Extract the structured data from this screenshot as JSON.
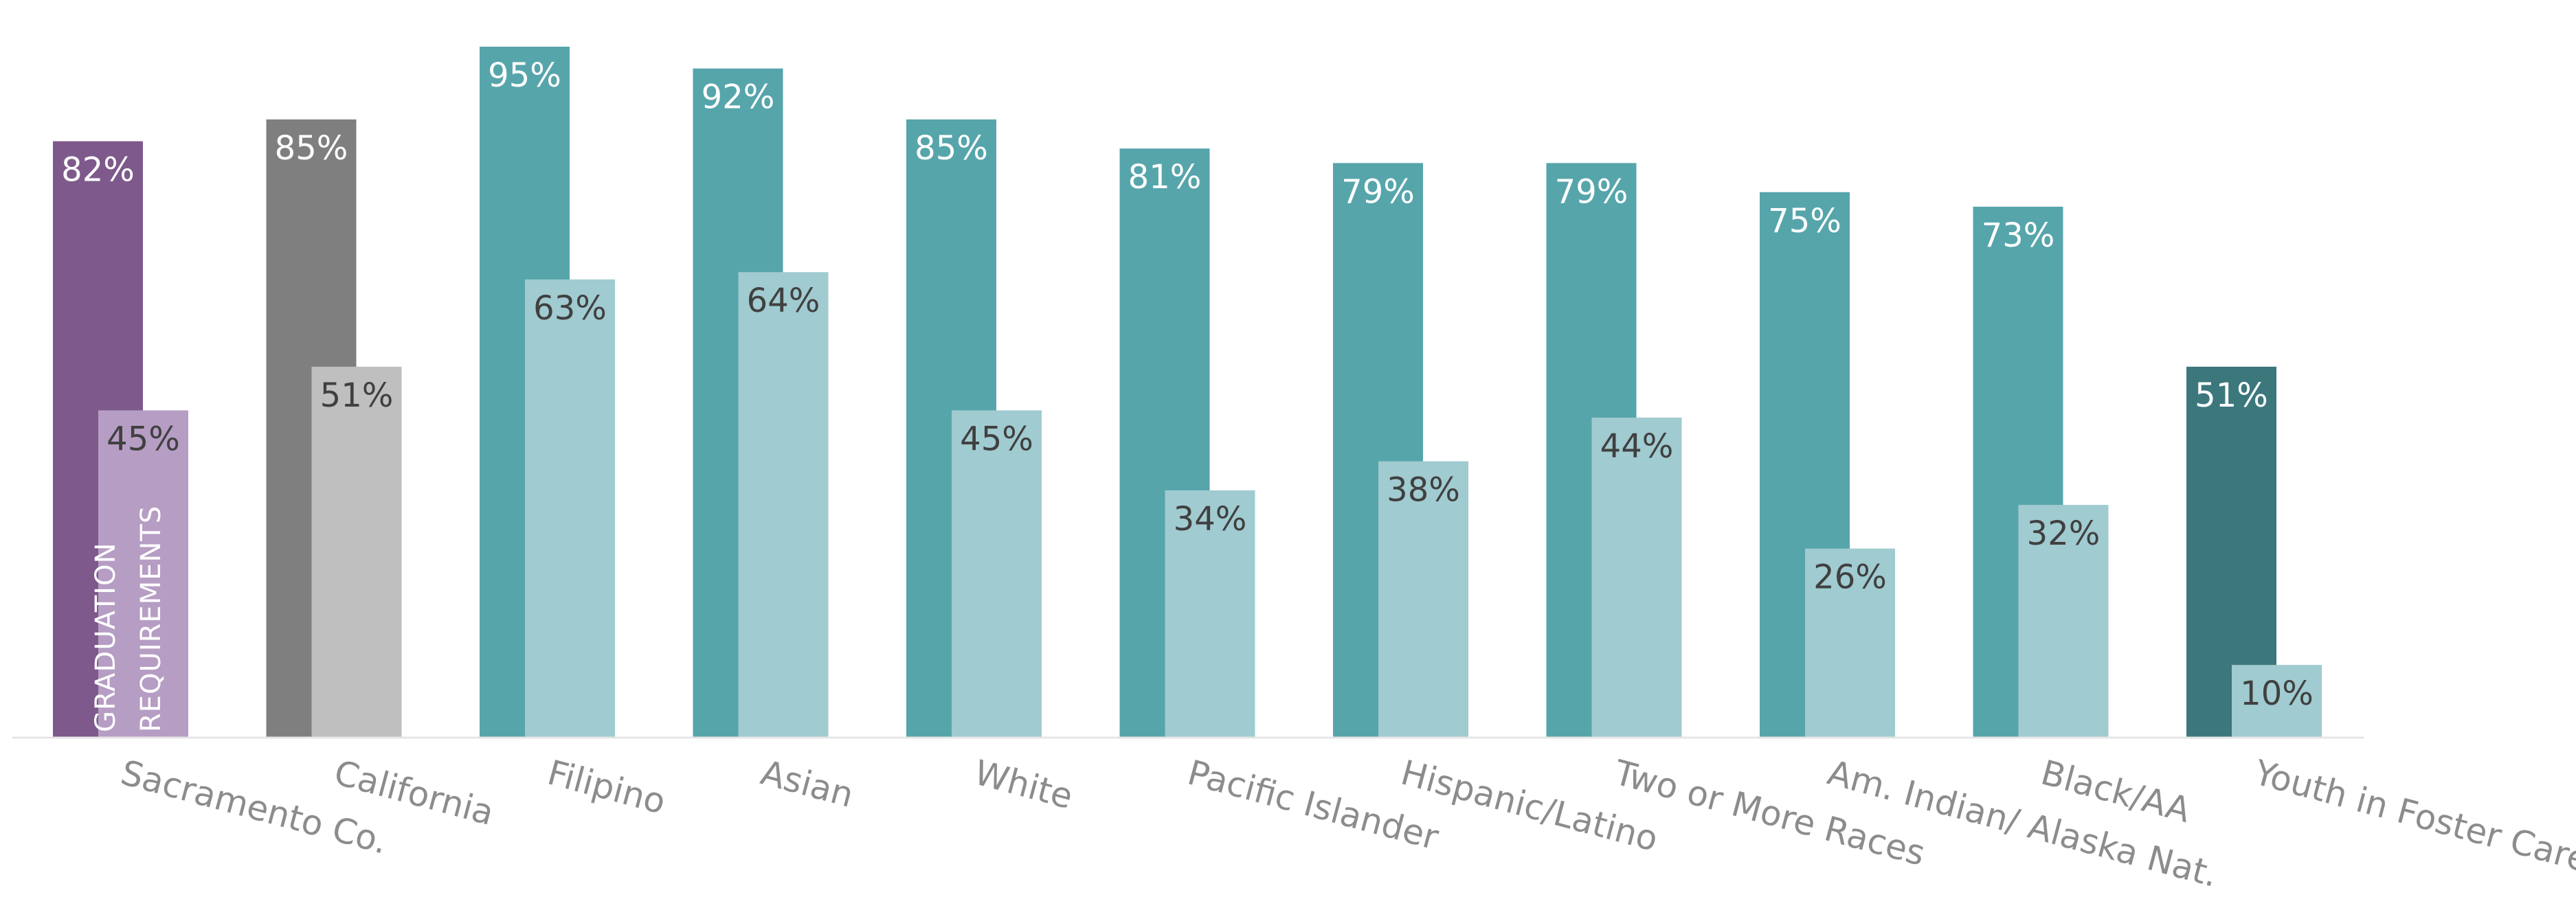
{
  "chart_data": {
    "type": "bar",
    "title": "",
    "xlabel": "",
    "ylabel": "",
    "ylim": [
      0,
      100
    ],
    "grid": false,
    "legend": "none",
    "categories": [
      "Sacramento Co.",
      "California",
      "Filipino",
      "Asian",
      "White",
      "Pacific Islander",
      "Hispanic/Latino",
      "Two or More Races",
      "Am. Indian/ Alaska Nat.",
      "Black/AA",
      "Youth in Foster Care"
    ],
    "series": [
      {
        "values": [
          82,
          85,
          95,
          92,
          85,
          81,
          79,
          79,
          75,
          73,
          51
        ],
        "labels": [
          "82%",
          "85%",
          "95%",
          "92%",
          "85%",
          "81%",
          "79%",
          "79%",
          "75%",
          "73%",
          "51%"
        ]
      },
      {
        "values": [
          45,
          51,
          63,
          64,
          45,
          34,
          38,
          44,
          26,
          32,
          10
        ],
        "labels": [
          "45%",
          "51%",
          "63%",
          "64%",
          "45%",
          "34%",
          "38%",
          "44%",
          "26%",
          "32%",
          "10%"
        ]
      }
    ],
    "colors": {
      "primary": [
        "#7e598b",
        "#7f7f7f",
        "#56a5ab",
        "#56a5ab",
        "#56a5ab",
        "#56a5ab",
        "#56a5ab",
        "#56a5ab",
        "#56a5ab",
        "#56a5ab",
        "#3c777c"
      ],
      "secondary": [
        "#b69dc4",
        "#bfbfbf",
        "#a0cbd0",
        "#a0cbd0",
        "#a0cbd0",
        "#a0cbd0",
        "#a0cbd0",
        "#a0cbd0",
        "#a0cbd0",
        "#a0cbd0",
        "#a0cbd0"
      ],
      "primary_label": "#ffffff",
      "secondary_label": "#404040",
      "axis_label": "#8c8c8c",
      "baseline": "#e6e6e6"
    },
    "annotations": [
      {
        "lines": [
          "GRADUATION",
          "REQUIREMENTS"
        ]
      }
    ]
  }
}
